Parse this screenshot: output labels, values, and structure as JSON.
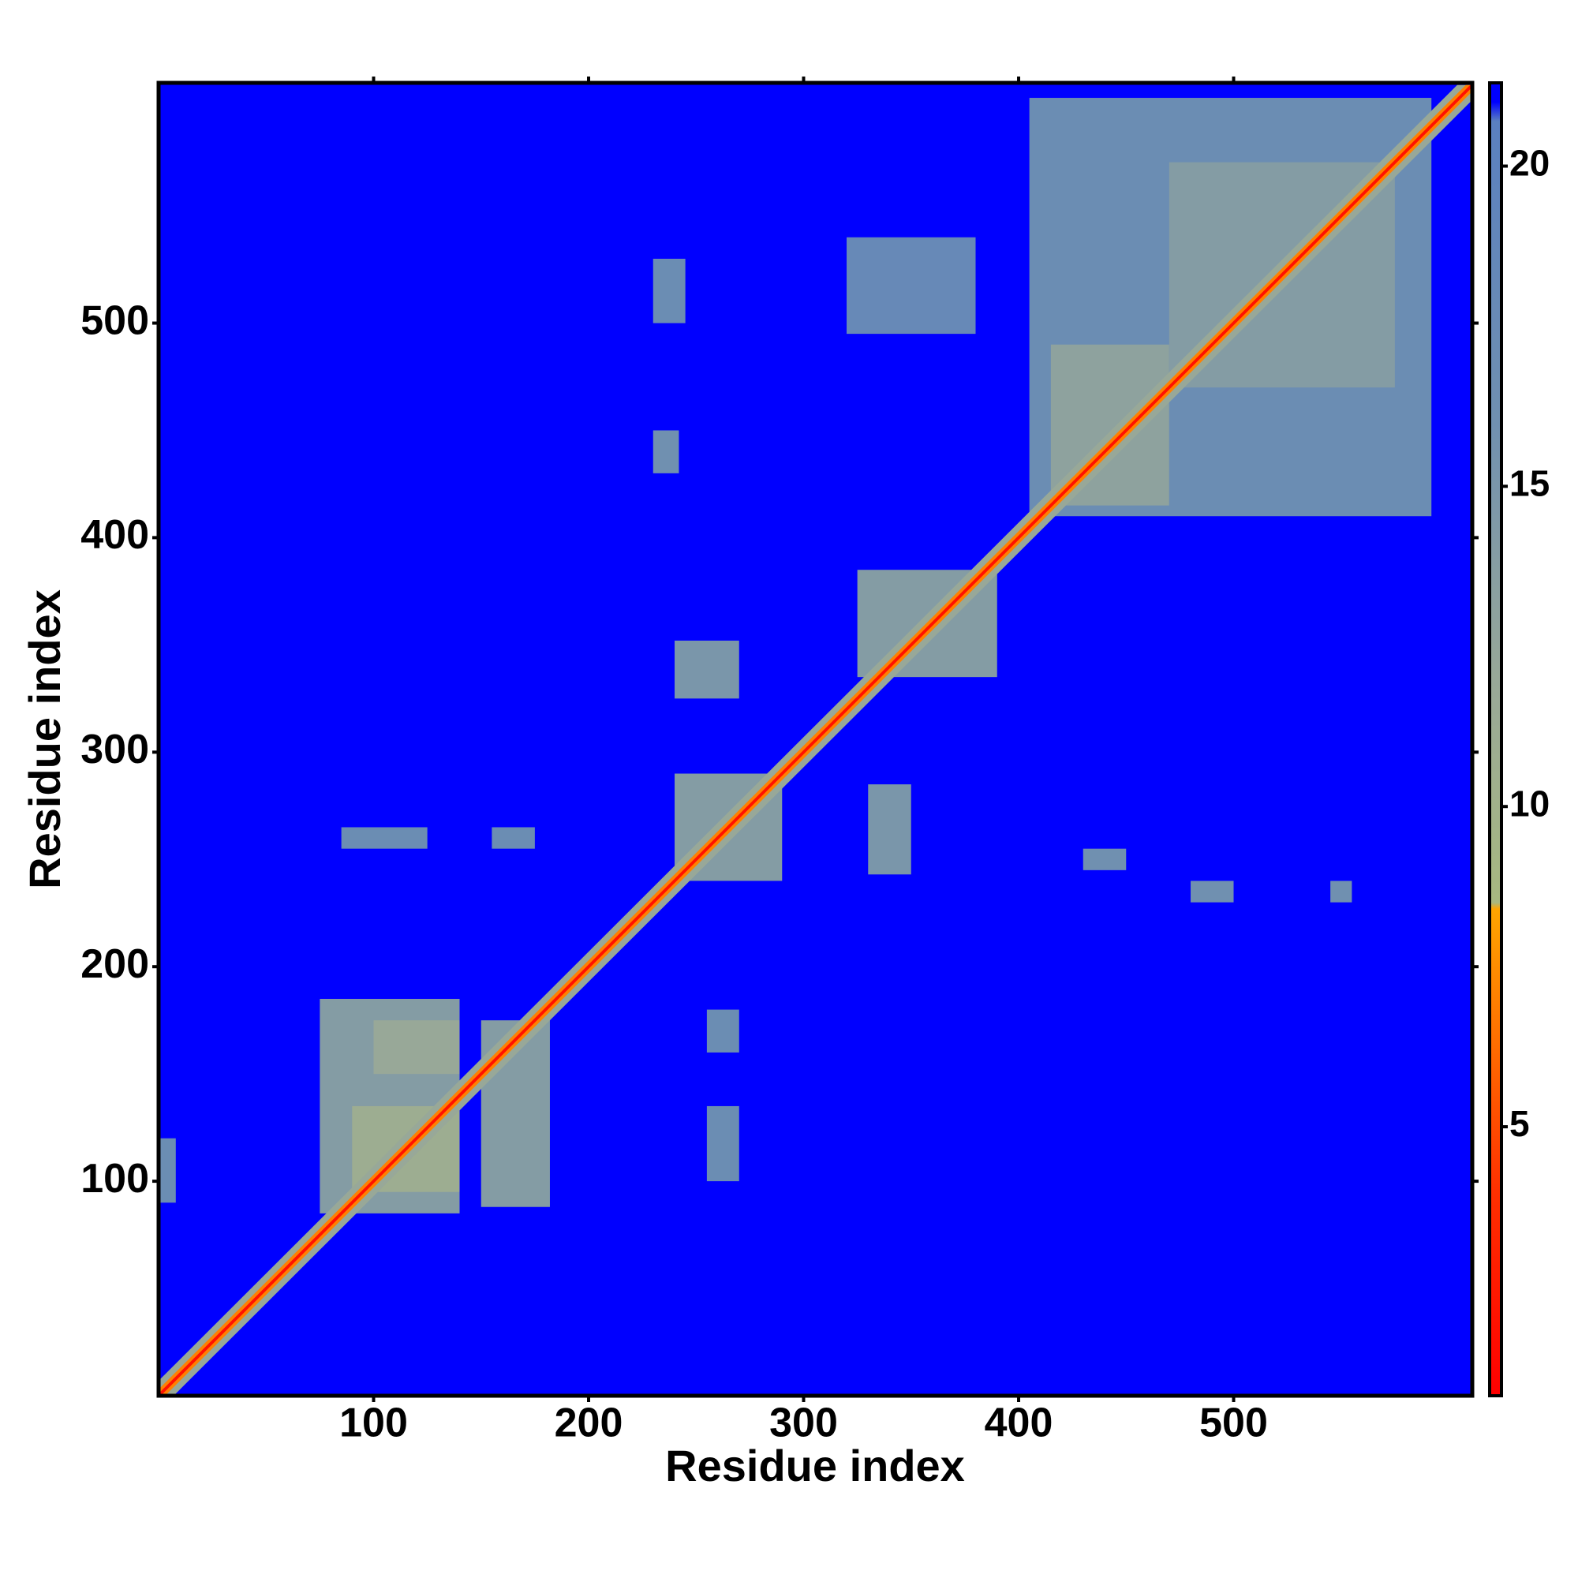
{
  "chart_data": {
    "type": "heatmap",
    "x_label": "Residue index",
    "y_label": "Residue index",
    "xlim": [
      0,
      611
    ],
    "ylim": [
      0,
      612
    ],
    "xticks": [
      100,
      200,
      300,
      400,
      500
    ],
    "yticks": [
      100,
      200,
      300,
      400,
      500
    ],
    "colorbar": {
      "lim": [
        0.8,
        21.3
      ],
      "ticks": [
        5,
        10,
        15,
        20
      ]
    },
    "colorscale": [
      [
        0.8,
        "#ff0000"
      ],
      [
        4,
        "#ff3000"
      ],
      [
        8.4,
        "#ffa500"
      ],
      [
        8.5,
        "#a8b880"
      ],
      [
        12,
        "#98a898"
      ],
      [
        16,
        "#7090b0"
      ],
      [
        20.7,
        "#5a80c0"
      ],
      [
        21.0,
        "#0000ff"
      ],
      [
        21.3,
        "#0000ff"
      ]
    ],
    "background": 21.3,
    "patches": [
      {
        "x": [
          405,
          592
        ],
        "y": [
          410,
          605
        ],
        "value": 17
      },
      {
        "x": [
          415,
          470
        ],
        "y": [
          415,
          490
        ],
        "value": 13
      },
      {
        "x": [
          470,
          575
        ],
        "y": [
          470,
          575
        ],
        "value": 14
      },
      {
        "x": [
          75,
          140
        ],
        "y": [
          85,
          185
        ],
        "value": 14
      },
      {
        "x": [
          150,
          182
        ],
        "y": [
          88,
          175
        ],
        "value": 14
      },
      {
        "x": [
          90,
          140
        ],
        "y": [
          95,
          135
        ],
        "value": 11
      },
      {
        "x": [
          100,
          140
        ],
        "y": [
          150,
          175
        ],
        "value": 12
      },
      {
        "x": [
          240,
          290
        ],
        "y": [
          240,
          290
        ],
        "value": 14
      },
      {
        "x": [
          330,
          350
        ],
        "y": [
          243,
          285
        ],
        "value": 15
      },
      {
        "x": [
          240,
          270
        ],
        "y": [
          325,
          352
        ],
        "value": 15
      },
      {
        "x": [
          430,
          450
        ],
        "y": [
          245,
          255
        ],
        "value": 16
      },
      {
        "x": [
          480,
          500
        ],
        "y": [
          230,
          240
        ],
        "value": 16
      },
      {
        "x": [
          545,
          555
        ],
        "y": [
          230,
          240
        ],
        "value": 16
      },
      {
        "x": [
          230,
          242
        ],
        "y": [
          430,
          450
        ],
        "value": 16
      },
      {
        "x": [
          85,
          125
        ],
        "y": [
          255,
          265
        ],
        "value": 17
      },
      {
        "x": [
          155,
          175
        ],
        "y": [
          255,
          265
        ],
        "value": 17
      },
      {
        "x": [
          255,
          270
        ],
        "y": [
          100,
          135
        ],
        "value": 17
      },
      {
        "x": [
          255,
          270
        ],
        "y": [
          160,
          180
        ],
        "value": 17
      },
      {
        "x": [
          0,
          8
        ],
        "y": [
          90,
          120
        ],
        "value": 17
      },
      {
        "x": [
          230,
          245
        ],
        "y": [
          500,
          530
        ],
        "value": 17
      },
      {
        "x": [
          320,
          380
        ],
        "y": [
          495,
          540
        ],
        "value": 18
      },
      {
        "x": [
          325,
          390
        ],
        "y": [
          335,
          385
        ],
        "value": 14
      }
    ],
    "diagonal_band": [
      {
        "half_width": 7,
        "value": 12
      },
      {
        "half_width": 3,
        "value": 7
      },
      {
        "half_width": 1,
        "value": 2
      }
    ]
  }
}
